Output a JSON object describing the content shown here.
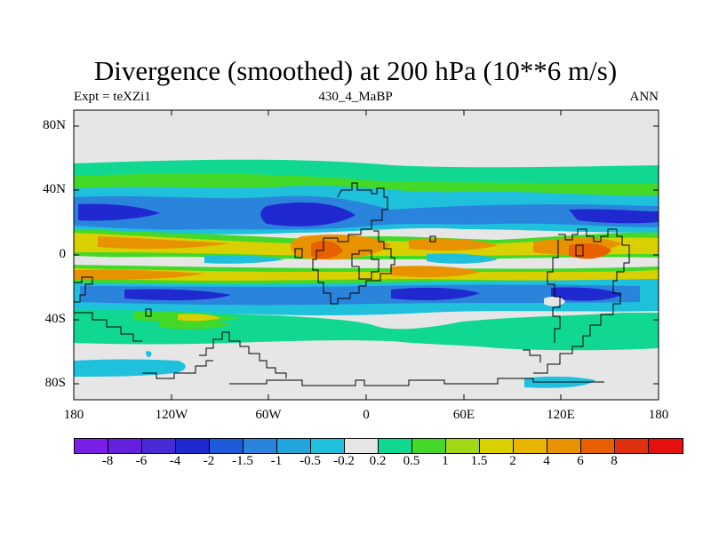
{
  "title": "Divergence (smoothed) at 200 hPa (10**6 m/s)",
  "left_label": "Expt = teXZi1",
  "center_label": "430_4_MaBP",
  "right_label": "ANN",
  "y_ticks": [
    "80N",
    "40N",
    "0",
    "40S",
    "80S"
  ],
  "x_ticks": [
    "180",
    "120W",
    "60W",
    "0",
    "60E",
    "120E",
    "180"
  ],
  "colorbar": {
    "colors": [
      "#7a20e6",
      "#6420dc",
      "#4a2ad6",
      "#2028d0",
      "#1f5ad8",
      "#2a84dc",
      "#22a4dc",
      "#1ec0dc",
      "#e6e6e6",
      "#10d890",
      "#44d828",
      "#a0d818",
      "#d8d000",
      "#e8b400",
      "#e89200",
      "#e86000",
      "#e03010",
      "#e61010"
    ],
    "labels": [
      "-8",
      "-6",
      "-4",
      "-2",
      "-1.5",
      "-1",
      "-0.5",
      "-0.2",
      "0.2",
      "0.5",
      "1",
      "1.5",
      "2",
      "4",
      "6",
      "8"
    ]
  },
  "colors": {
    "neutral": "#e6e6e6",
    "light_green": "#44d828",
    "green": "#10d890",
    "yellow": "#d8d000",
    "orange": "#e89200",
    "red": "#e86000",
    "cyan": "#1ec0dc",
    "light_blue": "#2a84dc",
    "blue": "#1f5ad8",
    "dark_blue": "#2028d0"
  }
}
